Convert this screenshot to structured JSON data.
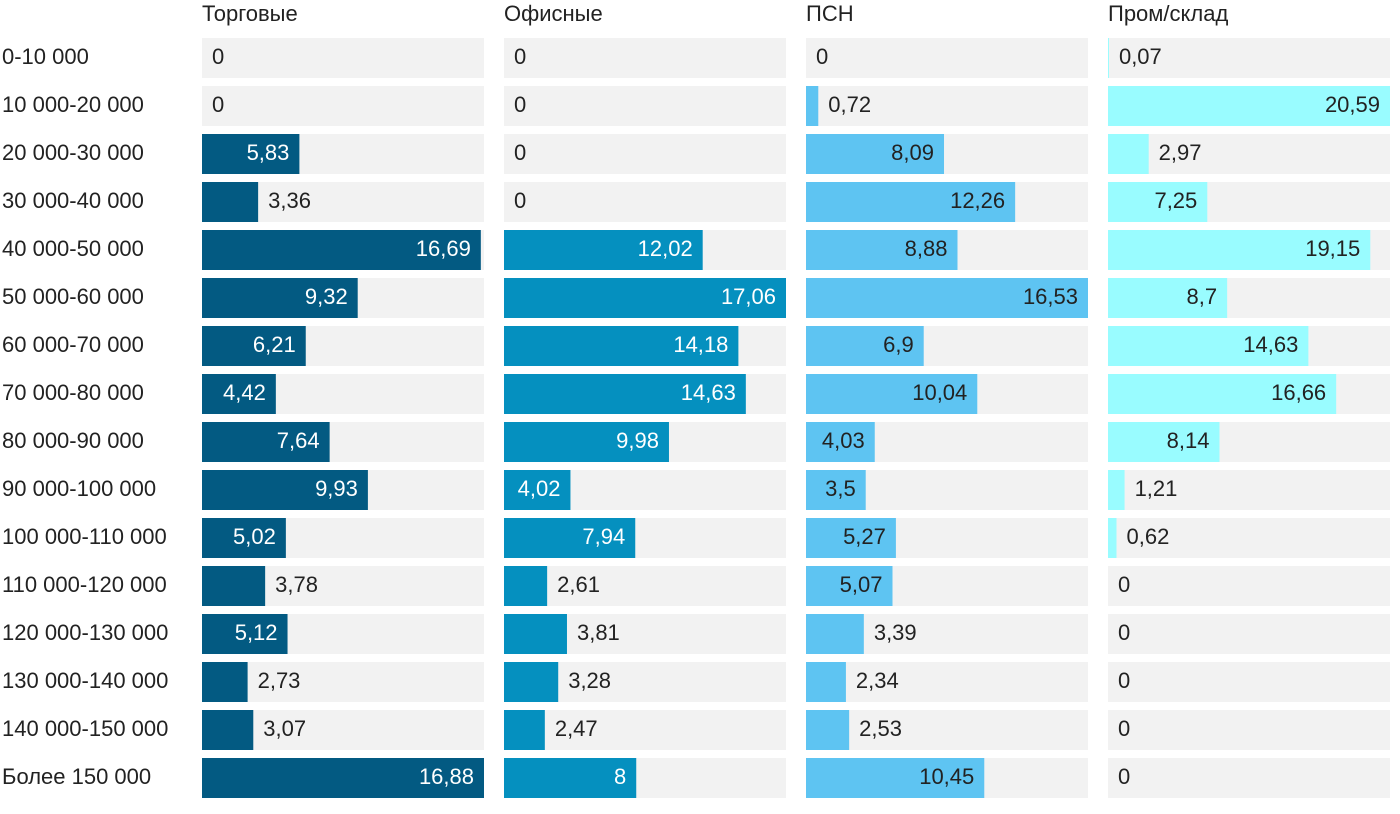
{
  "chart_data": {
    "type": "bar",
    "categories": [
      "0-10 000",
      "10 000-20 000",
      "20 000-30 000",
      "30 000-40 000",
      "40 000-50 000",
      "50 000-60 000",
      "60 000-70 000",
      "70 000-80 000",
      "80 000-90 000",
      "90 000-100 000",
      "100 000-110 000",
      "110 000-120 000",
      "120 000-130 000",
      "130 000-140 000",
      "140 000-150 000",
      "Более 150 000"
    ],
    "series": [
      {
        "name": "Торговые",
        "color": "#035a82",
        "label_color": "#ffffff",
        "xlim": [
          0,
          16.88
        ],
        "values": [
          0,
          0,
          5.83,
          3.36,
          16.69,
          9.32,
          6.21,
          4.42,
          7.64,
          9.93,
          5.02,
          3.78,
          5.12,
          2.73,
          3.07,
          16.88
        ],
        "value_labels": [
          "0",
          "0",
          "5,83",
          "3,36",
          "16,69",
          "9,32",
          "6,21",
          "4,42",
          "7,64",
          "9,93",
          "5,02",
          "3,78",
          "5,12",
          "2,73",
          "3,07",
          "16,88"
        ]
      },
      {
        "name": "Офисные",
        "color": "#0590bf",
        "label_color": "#ffffff",
        "xlim": [
          0,
          17.06
        ],
        "values": [
          0,
          0,
          0,
          0,
          12.02,
          17.06,
          14.18,
          14.63,
          9.98,
          4.02,
          7.94,
          2.61,
          3.81,
          3.28,
          2.47,
          8
        ],
        "value_labels": [
          "0",
          "0",
          "0",
          "0",
          "12,02",
          "17,06",
          "14,18",
          "14,63",
          "9,98",
          "4,02",
          "7,94",
          "2,61",
          "3,81",
          "3,28",
          "2,47",
          "8"
        ]
      },
      {
        "name": "ПСН",
        "color": "#5ec4f2",
        "label_color": "#222222",
        "xlim": [
          0,
          16.53
        ],
        "values": [
          0,
          0.72,
          8.09,
          12.26,
          8.88,
          16.53,
          6.9,
          10.04,
          4.03,
          3.5,
          5.27,
          5.07,
          3.39,
          2.34,
          2.53,
          10.45
        ],
        "value_labels": [
          "0",
          "0,72",
          "8,09",
          "12,26",
          "8,88",
          "16,53",
          "6,9",
          "10,04",
          "4,03",
          "3,5",
          "5,27",
          "5,07",
          "3,39",
          "2,34",
          "2,53",
          "10,45"
        ]
      },
      {
        "name": "Пром/склад",
        "color": "#99fcff",
        "label_color": "#222222",
        "xlim": [
          0,
          20.59
        ],
        "values": [
          0.07,
          20.59,
          2.97,
          7.25,
          19.15,
          8.7,
          14.63,
          16.66,
          8.14,
          1.21,
          0.62,
          0,
          0,
          0,
          0,
          0
        ],
        "value_labels": [
          "0,07",
          "20,59",
          "2,97",
          "7,25",
          "19,15",
          "8,7",
          "14,63",
          "16,66",
          "8,14",
          "1,21",
          "0,62",
          "0",
          "0",
          "0",
          "0",
          "0"
        ]
      }
    ]
  }
}
